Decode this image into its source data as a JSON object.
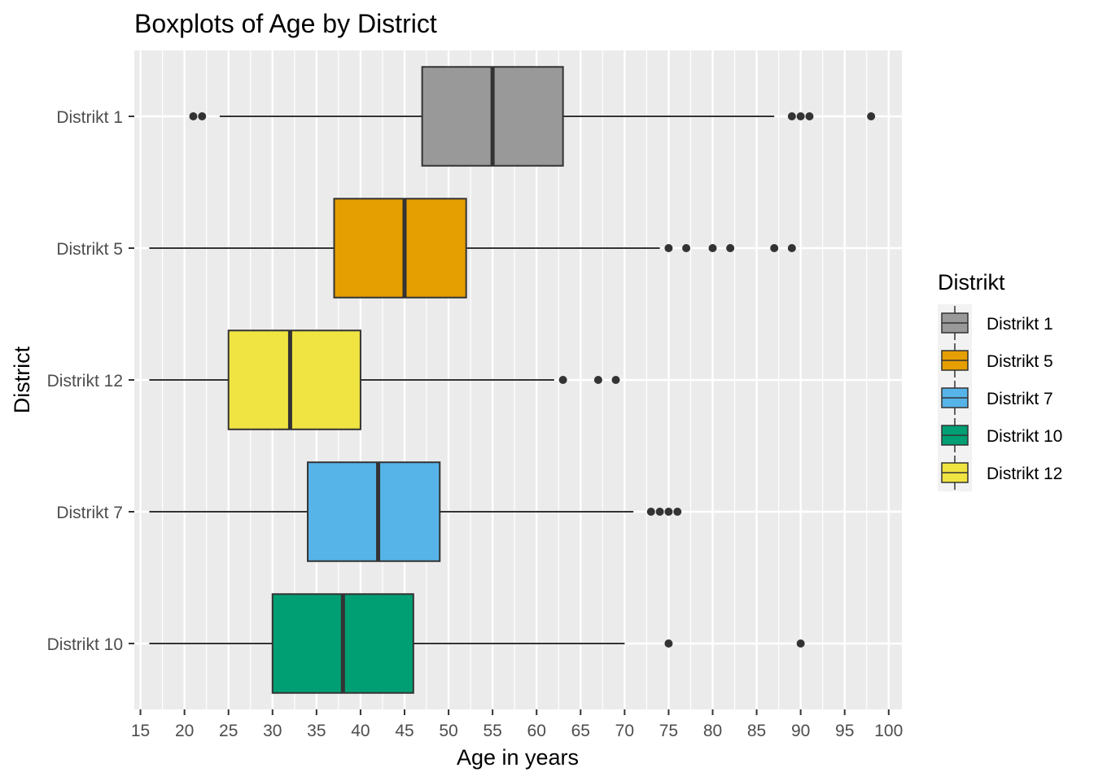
{
  "chart_data": {
    "type": "boxplot",
    "orientation": "horizontal",
    "title": "Boxplots of Age by District",
    "xlabel": "Age in years",
    "ylabel": "District",
    "xlim": [
      14.3,
      101.5
    ],
    "x_ticks": [
      15,
      20,
      25,
      30,
      35,
      40,
      45,
      50,
      55,
      60,
      65,
      70,
      75,
      80,
      85,
      90,
      95,
      100
    ],
    "grid": true,
    "legend_title": "Distrikt",
    "legend_position": "right",
    "categories": [
      "Distrikt 1",
      "Distrikt 5",
      "Distrikt 12",
      "Distrikt 7",
      "Distrikt 10"
    ],
    "series": [
      {
        "name": "Distrikt 1",
        "color": "#999999",
        "whisker_low": 24,
        "q1": 47,
        "median": 55,
        "q3": 63,
        "whisker_high": 87,
        "outliers": [
          21,
          22,
          89,
          90,
          91,
          98
        ]
      },
      {
        "name": "Distrikt 5",
        "color": "#E69F00",
        "whisker_low": 16,
        "q1": 37,
        "median": 45,
        "q3": 52,
        "whisker_high": 74,
        "outliers": [
          75,
          77,
          80,
          82,
          87,
          89
        ]
      },
      {
        "name": "Distrikt 12",
        "color": "#F0E442",
        "whisker_low": 16,
        "q1": 25,
        "median": 32,
        "q3": 40,
        "whisker_high": 62,
        "outliers": [
          63,
          67,
          69
        ]
      },
      {
        "name": "Distrikt 7",
        "color": "#56B4E9",
        "whisker_low": 16,
        "q1": 34,
        "median": 42,
        "q3": 49,
        "whisker_high": 71,
        "outliers": [
          73,
          74,
          75,
          76
        ]
      },
      {
        "name": "Distrikt 10",
        "color": "#009E73",
        "whisker_low": 16,
        "q1": 30,
        "median": 38,
        "q3": 46,
        "whisker_high": 70,
        "outliers": [
          75,
          90
        ]
      }
    ],
    "legend_entries": [
      {
        "label": "Distrikt 1",
        "color": "#999999"
      },
      {
        "label": "Distrikt 5",
        "color": "#E69F00"
      },
      {
        "label": "Distrikt 7",
        "color": "#56B4E9"
      },
      {
        "label": "Distrikt 10",
        "color": "#009E73"
      },
      {
        "label": "Distrikt 12",
        "color": "#F0E442"
      }
    ]
  }
}
